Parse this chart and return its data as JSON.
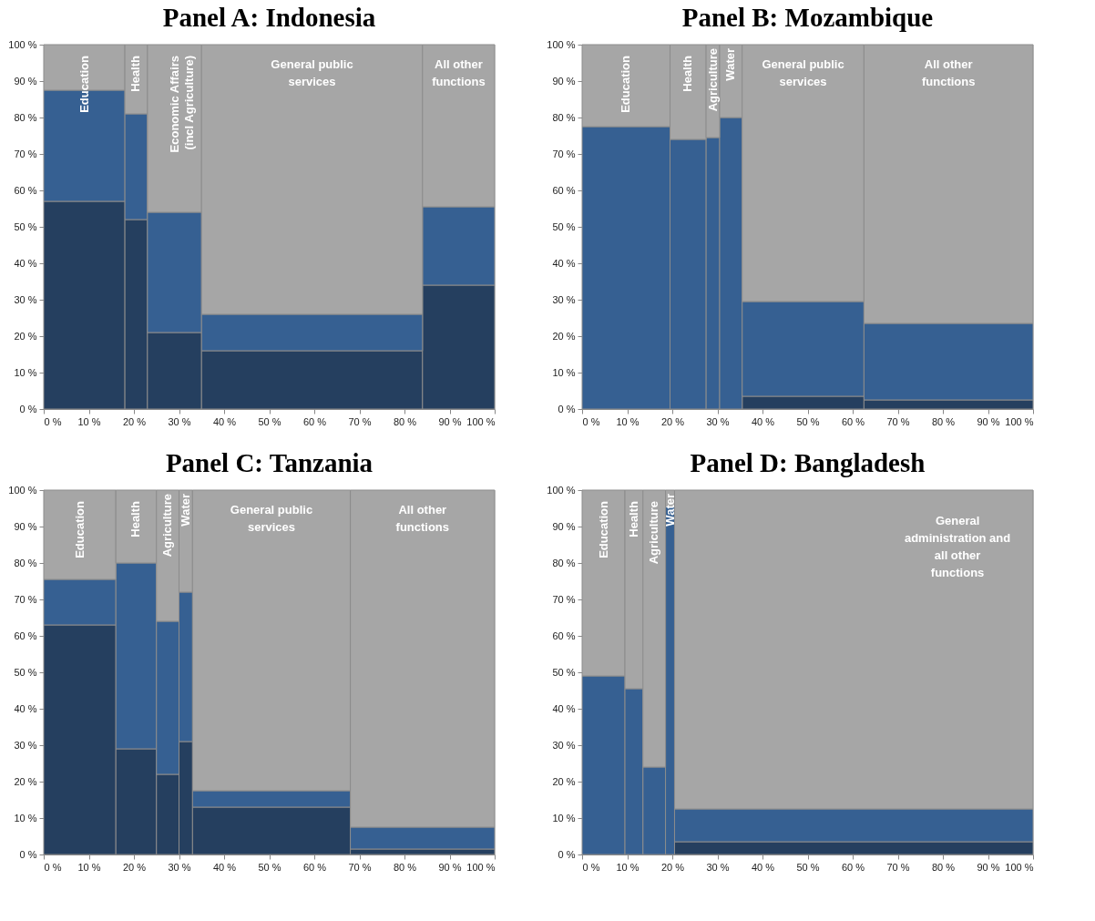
{
  "chart_data": [
    {
      "type": "bar",
      "title": "Panel A: Indonesia",
      "stacked": true,
      "x": [
        9,
        20.5,
        29,
        59.5,
        92
      ],
      "xlim": [
        0,
        100
      ],
      "ylim": [
        0,
        100
      ],
      "xticks": [
        {
          "value": 0,
          "label": "0 %"
        },
        {
          "value": 10,
          "label": "10 %"
        },
        {
          "value": 20,
          "label": "20 %"
        },
        {
          "value": 30,
          "label": "30 %"
        },
        {
          "value": 40,
          "label": "40 %"
        },
        {
          "value": 50,
          "label": "50 %"
        },
        {
          "value": 60,
          "label": "60 %"
        },
        {
          "value": 70,
          "label": "70 %"
        },
        {
          "value": 80,
          "label": "80 %"
        },
        {
          "value": 90,
          "label": "90 %"
        },
        {
          "value": 100,
          "label": "100 %"
        }
      ],
      "yticks": [
        {
          "value": 0,
          "label": "0 %"
        },
        {
          "value": 10,
          "label": "10 %"
        },
        {
          "value": 20,
          "label": "20 %"
        },
        {
          "value": 30,
          "label": "30 %"
        },
        {
          "value": 40,
          "label": "40 %"
        },
        {
          "value": 50,
          "label": "50 %"
        },
        {
          "value": 60,
          "label": "60 %"
        },
        {
          "value": 70,
          "label": "70 %"
        },
        {
          "value": 80,
          "label": "80 %"
        },
        {
          "value": 90,
          "label": "90 %"
        },
        {
          "value": 100,
          "label": "100 %"
        }
      ],
      "series": [
        {
          "color": "#253f5f",
          "values": [
            57,
            52,
            21,
            16,
            34
          ]
        },
        {
          "color": "#366092",
          "values": [
            30.5,
            29,
            33,
            10,
            21.5
          ]
        },
        {
          "color": "#a6a6a6",
          "values": [
            12.5,
            19,
            46,
            74,
            44.5
          ]
        }
      ],
      "annotations": [
        "Education",
        "Health",
        "Economic Affairs (incl Agriculture)",
        "General public services",
        "All other functions"
      ]
    },
    {
      "type": "bar",
      "title": "Panel B: Mozambique",
      "stacked": true,
      "x": [
        9.75,
        23.5,
        29,
        33,
        49,
        81.25
      ],
      "xlim": [
        0,
        100
      ],
      "ylim": [
        0,
        100
      ],
      "xticks": [
        {
          "value": 0,
          "label": "0 %"
        },
        {
          "value": 10,
          "label": "10 %"
        },
        {
          "value": 20,
          "label": "20 %"
        },
        {
          "value": 30,
          "label": "30 %"
        },
        {
          "value": 40,
          "label": "40 %"
        },
        {
          "value": 50,
          "label": "50 %"
        },
        {
          "value": 60,
          "label": "60 %"
        },
        {
          "value": 70,
          "label": "70 %"
        },
        {
          "value": 80,
          "label": "80 %"
        },
        {
          "value": 90,
          "label": "90 %"
        },
        {
          "value": 100,
          "label": "100 %"
        }
      ],
      "yticks": [
        {
          "value": 0,
          "label": "0 %"
        },
        {
          "value": 10,
          "label": "10 %"
        },
        {
          "value": 20,
          "label": "20 %"
        },
        {
          "value": 30,
          "label": "30 %"
        },
        {
          "value": 40,
          "label": "40 %"
        },
        {
          "value": 50,
          "label": "50 %"
        },
        {
          "value": 60,
          "label": "60 %"
        },
        {
          "value": 70,
          "label": "70 %"
        },
        {
          "value": 80,
          "label": "80 %"
        },
        {
          "value": 90,
          "label": "90 %"
        },
        {
          "value": 100,
          "label": "100 %"
        }
      ],
      "series": [
        {
          "color": "#253f5f",
          "values": [
            0,
            0,
            0,
            0,
            3.5,
            2.5
          ]
        },
        {
          "color": "#366092",
          "values": [
            77.5,
            74,
            74.5,
            80,
            26,
            21
          ]
        },
        {
          "color": "#a6a6a6",
          "values": [
            22.5,
            26,
            25.5,
            20,
            70.5,
            76.5
          ]
        }
      ],
      "annotations": [
        "Education",
        "Health",
        "Agriculture",
        "Water",
        "General public services",
        "All other functions"
      ]
    },
    {
      "type": "bar",
      "title": "Panel C: Tanzania",
      "stacked": true,
      "x": [
        8,
        20.5,
        27.5,
        31.5,
        50.5,
        84
      ],
      "xlim": [
        0,
        100
      ],
      "ylim": [
        0,
        100
      ],
      "xticks": [
        {
          "value": 0,
          "label": "0 %"
        },
        {
          "value": 10,
          "label": "10 %"
        },
        {
          "value": 20,
          "label": "20 %"
        },
        {
          "value": 30,
          "label": "30 %"
        },
        {
          "value": 40,
          "label": "40 %"
        },
        {
          "value": 50,
          "label": "50 %"
        },
        {
          "value": 60,
          "label": "60 %"
        },
        {
          "value": 70,
          "label": "70 %"
        },
        {
          "value": 80,
          "label": "80 %"
        },
        {
          "value": 90,
          "label": "90 %"
        },
        {
          "value": 100,
          "label": "100 %"
        }
      ],
      "yticks": [
        {
          "value": 0,
          "label": "0 %"
        },
        {
          "value": 10,
          "label": "10 %"
        },
        {
          "value": 20,
          "label": "20 %"
        },
        {
          "value": 30,
          "label": "30 %"
        },
        {
          "value": 40,
          "label": "40 %"
        },
        {
          "value": 50,
          "label": "50 %"
        },
        {
          "value": 60,
          "label": "60 %"
        },
        {
          "value": 70,
          "label": "70 %"
        },
        {
          "value": 80,
          "label": "80 %"
        },
        {
          "value": 90,
          "label": "90 %"
        },
        {
          "value": 100,
          "label": "100 %"
        }
      ],
      "series": [
        {
          "color": "#253f5f",
          "values": [
            63,
            29,
            22,
            31,
            13,
            1.5
          ]
        },
        {
          "color": "#366092",
          "values": [
            12.5,
            51,
            42,
            41,
            4.5,
            6
          ]
        },
        {
          "color": "#a6a6a6",
          "values": [
            24.5,
            20,
            36,
            28,
            82.5,
            92.5
          ]
        }
      ],
      "annotations": [
        "Education",
        "Health",
        "Agriculture",
        "Water",
        "General public services",
        "All other functions"
      ]
    },
    {
      "type": "bar",
      "title": "Panel D: Bangladesh",
      "stacked": true,
      "x": [
        4.75,
        11.5,
        16,
        19.5,
        60.25
      ],
      "xlim": [
        0,
        100
      ],
      "ylim": [
        0,
        100
      ],
      "xticks": [
        {
          "value": 0,
          "label": "0 %"
        },
        {
          "value": 10,
          "label": "10 %"
        },
        {
          "value": 20,
          "label": "20 %"
        },
        {
          "value": 30,
          "label": "30 %"
        },
        {
          "value": 40,
          "label": "40 %"
        },
        {
          "value": 50,
          "label": "50 %"
        },
        {
          "value": 60,
          "label": "60 %"
        },
        {
          "value": 70,
          "label": "70 %"
        },
        {
          "value": 80,
          "label": "80 %"
        },
        {
          "value": 90,
          "label": "90 %"
        },
        {
          "value": 100,
          "label": "100 %"
        }
      ],
      "yticks": [
        {
          "value": 0,
          "label": "0 %"
        },
        {
          "value": 10,
          "label": "10 %"
        },
        {
          "value": 20,
          "label": "20 %"
        },
        {
          "value": 30,
          "label": "30 %"
        },
        {
          "value": 40,
          "label": "40 %"
        },
        {
          "value": 50,
          "label": "50 %"
        },
        {
          "value": 60,
          "label": "60 %"
        },
        {
          "value": 70,
          "label": "70 %"
        },
        {
          "value": 80,
          "label": "80 %"
        },
        {
          "value": 90,
          "label": "90 %"
        },
        {
          "value": 100,
          "label": "100 %"
        }
      ],
      "series": [
        {
          "color": "#253f5f",
          "values": [
            0,
            0,
            0,
            0,
            3.5
          ]
        },
        {
          "color": "#366092",
          "values": [
            49,
            45.5,
            24,
            95.5,
            9
          ]
        },
        {
          "color": "#a6a6a6",
          "values": [
            51,
            54.5,
            76,
            4.5,
            87.5
          ]
        }
      ],
      "annotations": [
        "Education",
        "Health",
        "Agriculture",
        "Water",
        "General administration and all other functions"
      ]
    }
  ]
}
